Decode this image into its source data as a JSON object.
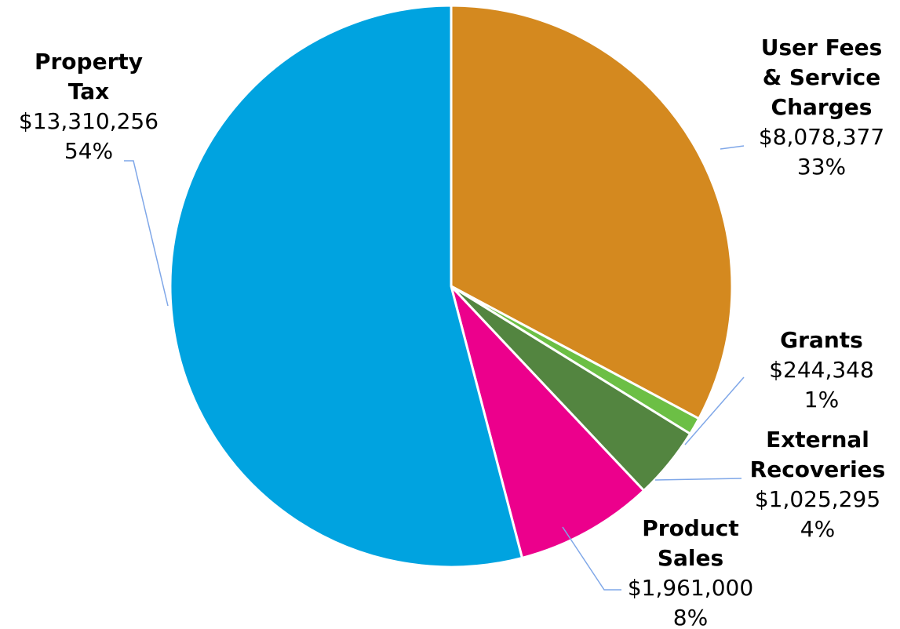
{
  "chart_data": {
    "type": "pie",
    "start_angle_deg": 0,
    "direction": "clockwise",
    "slices": [
      {
        "name_lines": [
          "User Fees",
          "& Service",
          "Charges"
        ],
        "value": 8078377,
        "value_label": "$8,078,377",
        "percent_label": "33%",
        "color": "#D4891F"
      },
      {
        "name_lines": [
          "Grants"
        ],
        "value": 244348,
        "value_label": "$244,348",
        "percent_label": "1%",
        "color": "#6CBF45"
      },
      {
        "name_lines": [
          "External",
          "Recoveries"
        ],
        "value": 1025295,
        "value_label": "$1,025,295",
        "percent_label": "4%",
        "color": "#538540"
      },
      {
        "name_lines": [
          "Product",
          "Sales"
        ],
        "value": 1961000,
        "value_label": "$1,961,000",
        "percent_label": "8%",
        "color": "#EC008C"
      },
      {
        "name_lines": [
          "Property",
          "Tax"
        ],
        "value": 13310256,
        "value_label": "$13,310,256",
        "percent_label": "54%",
        "color": "#00A3E0"
      }
    ]
  }
}
